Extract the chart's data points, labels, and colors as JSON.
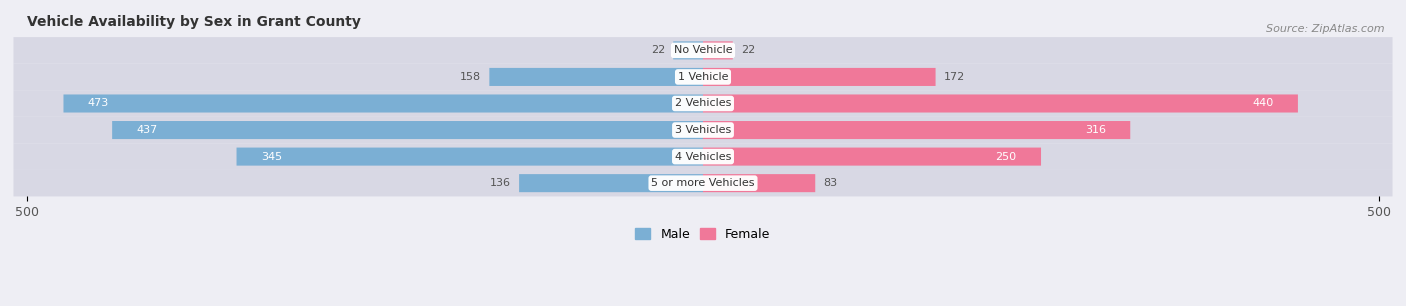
{
  "title": "Vehicle Availability by Sex in Grant County",
  "source": "Source: ZipAtlas.com",
  "categories": [
    "No Vehicle",
    "1 Vehicle",
    "2 Vehicles",
    "3 Vehicles",
    "4 Vehicles",
    "5 or more Vehicles"
  ],
  "male_values": [
    22,
    158,
    473,
    437,
    345,
    136
  ],
  "female_values": [
    22,
    172,
    440,
    316,
    250,
    83
  ],
  "male_color": "#7bafd4",
  "female_color": "#f07899",
  "male_label": "Male",
  "female_label": "Female",
  "axis_max": 500,
  "bg_color": "#eeeef4",
  "row_bg_color": "#d8d8e4",
  "row_gap_color": "#eeeef4",
  "label_color_dark": "#555555",
  "label_color_light": "#ffffff",
  "title_fontsize": 10,
  "source_fontsize": 8,
  "value_fontsize": 8,
  "cat_fontsize": 8
}
